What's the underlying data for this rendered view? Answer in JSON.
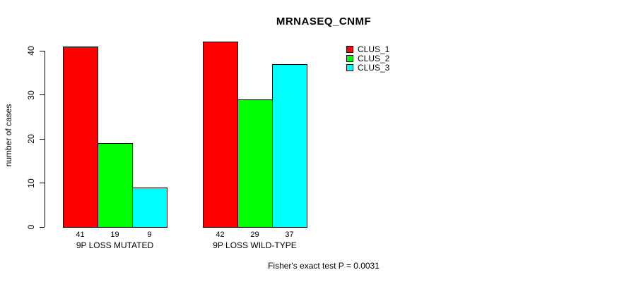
{
  "title": "MRNASEQ_CNMF",
  "chart_data": {
    "type": "bar",
    "title": "MRNASEQ_CNMF",
    "ylabel": "number of cases",
    "xlabel": "",
    "ylim": [
      0,
      40
    ],
    "yticks": [
      0,
      10,
      20,
      30,
      40
    ],
    "grid": false,
    "legend_position": "top-right",
    "categories": [
      "9P LOSS MUTATED",
      "9P LOSS WILD-TYPE"
    ],
    "series": [
      {
        "name": "CLUS_1",
        "color": "#ff0000",
        "values": [
          41,
          42
        ]
      },
      {
        "name": "CLUS_2",
        "color": "#00ff00",
        "values": [
          19,
          29
        ]
      },
      {
        "name": "CLUS_3",
        "color": "#00ffff",
        "values": [
          9,
          37
        ]
      }
    ],
    "bar_value_labels": [
      [
        41,
        19,
        9
      ],
      [
        42,
        29,
        37
      ]
    ],
    "annotation": "Fisher's exact test P = 0.0031"
  },
  "legend": {
    "items": [
      {
        "label": "CLUS_1",
        "color": "#ff0000"
      },
      {
        "label": "CLUS_2",
        "color": "#00ff00"
      },
      {
        "label": "CLUS_3",
        "color": "#00ffff"
      }
    ]
  },
  "colors": {
    "axis": "#000000",
    "bar_border": "#000000",
    "background": "#ffffff"
  }
}
